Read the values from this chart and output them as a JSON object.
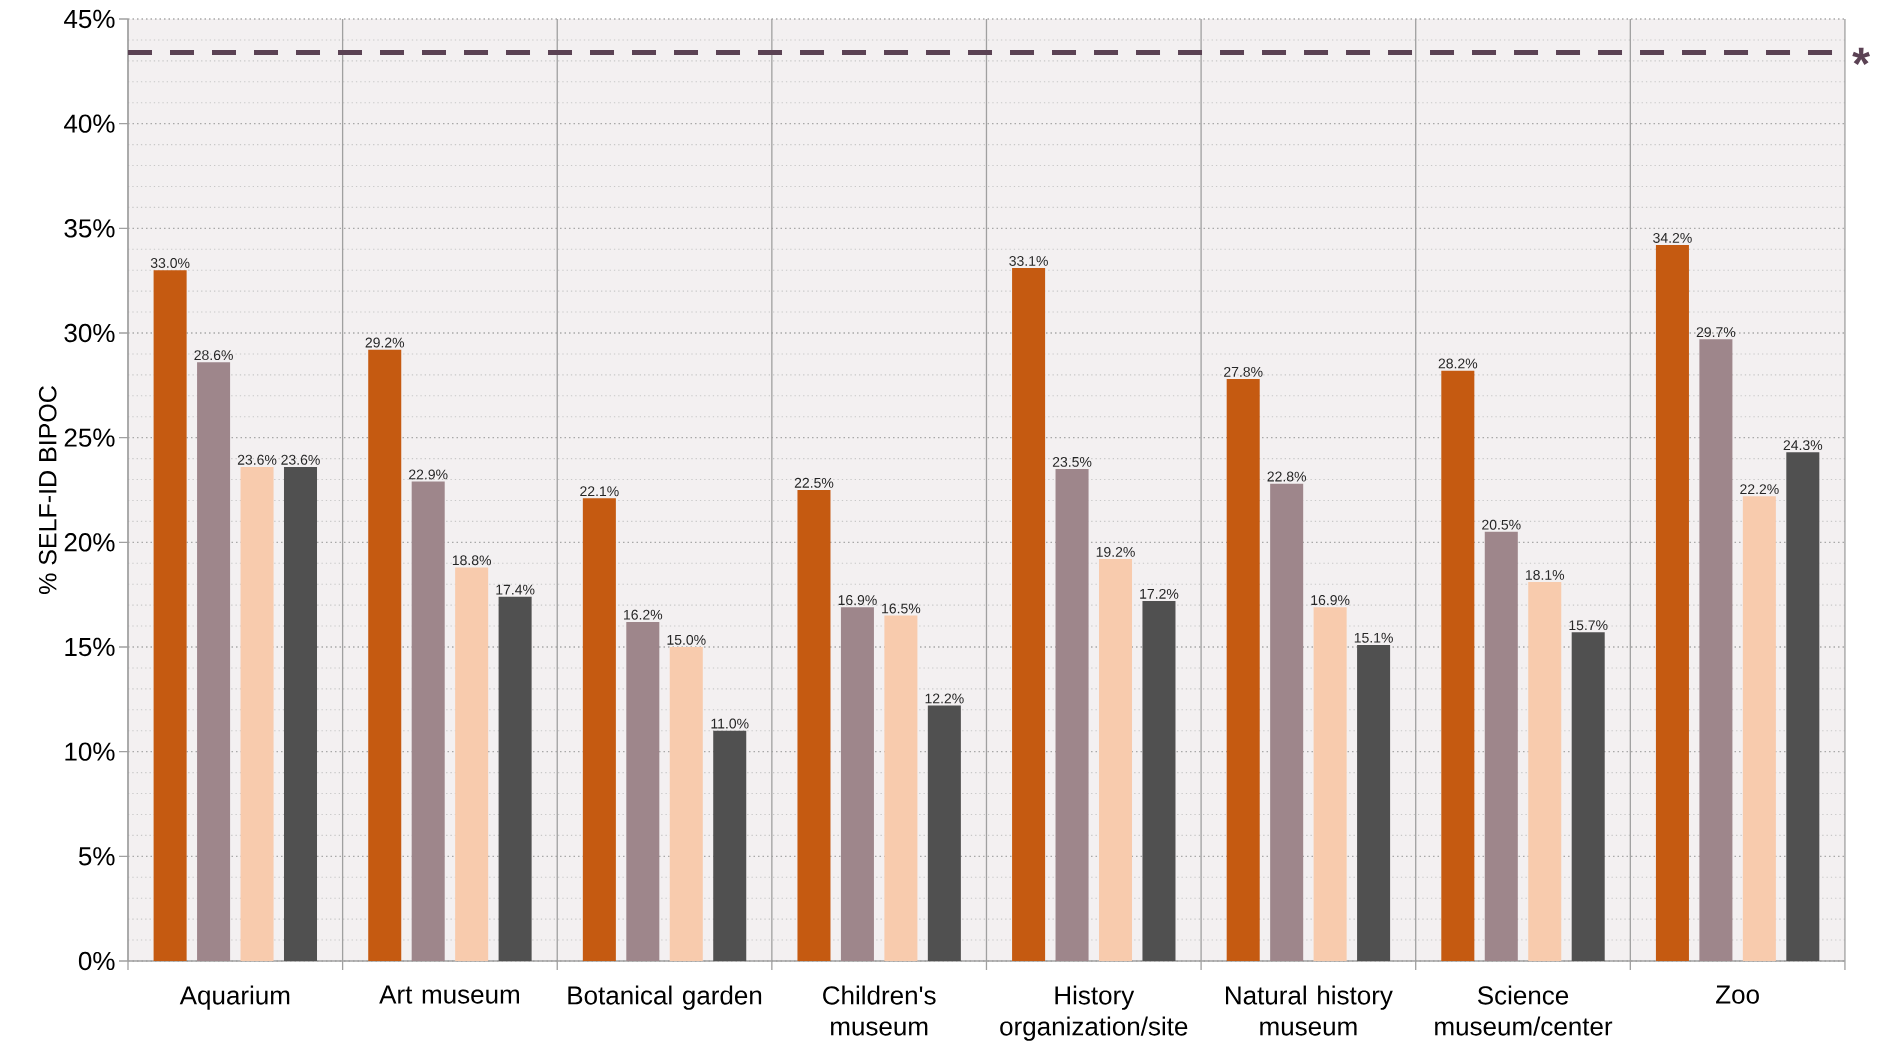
{
  "chart_data": {
    "type": "bar",
    "ylabel": "% SELF-ID BIPOC",
    "categories": [
      "Aquarium",
      "Art museum",
      "Botanical garden",
      "Children's museum",
      "History organization/site",
      "Natural history museum",
      "Science museum/center",
      "Zoo"
    ],
    "series": [
      {
        "color": "#c55a11",
        "values": [
          33.0,
          29.2,
          22.1,
          22.5,
          33.1,
          27.8,
          28.2,
          34.2
        ],
        "value_labels": [
          "33.0%",
          "29.2%",
          "22.1%",
          "22.5%",
          "33.1%",
          "27.8%",
          "28.2%",
          "34.2%"
        ]
      },
      {
        "color": "#9e868b",
        "values": [
          28.6,
          22.9,
          16.2,
          16.9,
          23.5,
          22.8,
          20.5,
          29.7
        ],
        "value_labels": [
          "28.6%",
          "22.9%",
          "16.2%",
          "16.9%",
          "23.5%",
          "22.8%",
          "20.5%",
          "29.7%"
        ]
      },
      {
        "color": "#f8cbad",
        "values": [
          23.6,
          18.8,
          15.0,
          16.5,
          19.2,
          16.9,
          18.1,
          22.2
        ],
        "value_labels": [
          "23.6%",
          "18.8%",
          "15.0%",
          "16.5%",
          "19.2%",
          "16.9%",
          "18.1%",
          "22.2%"
        ]
      },
      {
        "color": "#505050",
        "values": [
          23.6,
          17.4,
          11.0,
          12.2,
          17.2,
          15.1,
          15.7,
          24.3
        ],
        "value_labels": [
          "23.6%",
          "17.4%",
          "11.0%",
          "12.2%",
          "17.2%",
          "15.1%",
          "15.7%",
          "24.3%"
        ]
      }
    ],
    "ylim": [
      0,
      45
    ],
    "yticks": [
      {
        "value": 0,
        "label": "0%"
      },
      {
        "value": 5,
        "label": "5%"
      },
      {
        "value": 10,
        "label": "10%"
      },
      {
        "value": 15,
        "label": "15%"
      },
      {
        "value": 20,
        "label": "20%"
      },
      {
        "value": 25,
        "label": "25%"
      },
      {
        "value": 30,
        "label": "30%"
      },
      {
        "value": 35,
        "label": "35%"
      },
      {
        "value": 40,
        "label": "40%"
      },
      {
        "value": 45,
        "label": "45%"
      }
    ],
    "grid": true,
    "ref_lines": [
      {
        "axis": "y",
        "value": 43.4,
        "label": "*",
        "color": "#5b4254",
        "line_style": "dashed"
      }
    ]
  }
}
